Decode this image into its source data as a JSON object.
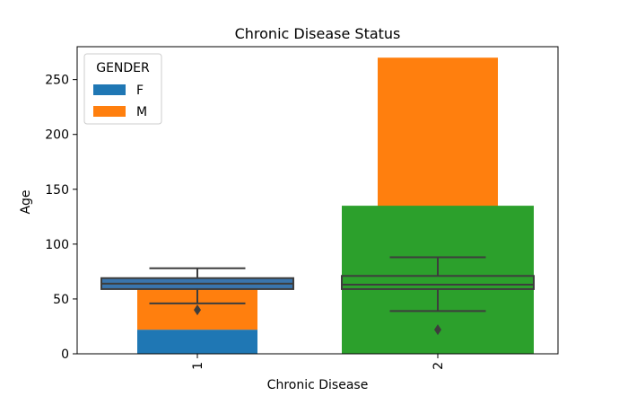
{
  "chart_data": {
    "type": "bar",
    "title": "Chronic Disease Status",
    "xlabel": "Chronic Disease",
    "ylabel": "Age",
    "categories": [
      "1",
      "2"
    ],
    "ylim": [
      0,
      280
    ],
    "yticks": [
      0,
      50,
      100,
      150,
      200,
      250
    ],
    "grid": false,
    "legend": {
      "title": "GENDER",
      "placement": "top-left",
      "entries": [
        {
          "label": "F",
          "color": "#1f77b4"
        },
        {
          "label": "M",
          "color": "#ff7f0e"
        }
      ]
    },
    "stacked_bars": {
      "series": [
        {
          "name": "F",
          "color": "#1f77b4",
          "values": [
            22,
            0
          ]
        },
        {
          "name": "M",
          "color": "#ff7f0e",
          "values": [
            39,
            270
          ]
        }
      ]
    },
    "total_bar": {
      "category": "2",
      "value": 135,
      "color": "#2ca02c"
    },
    "boxplots": [
      {
        "category": "1",
        "whisker_low": 46,
        "q1": 59,
        "median": 64,
        "q3": 69,
        "whisker_high": 78,
        "outliers": [
          40
        ],
        "box_color": "#3a75ad",
        "line_color": "#3d3d3d"
      },
      {
        "category": "2",
        "whisker_low": 39,
        "q1": 59,
        "median": 63,
        "q3": 71,
        "whisker_high": 88,
        "outliers": [
          22
        ],
        "box_color": "#2ca02c",
        "line_color": "#3d3d3d"
      }
    ]
  }
}
